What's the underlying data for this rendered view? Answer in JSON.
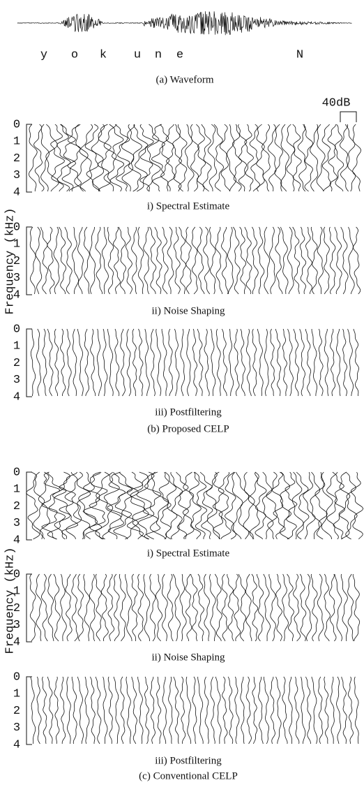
{
  "waveform": {
    "phonemes": [
      "y",
      "o",
      "k",
      "u",
      "n",
      "e",
      "N"
    ],
    "caption": "(a) Waveform"
  },
  "scale_label": "40dB",
  "figures": [
    {
      "axis_label": "Frequency (kHz)",
      "caption": "(b) Proposed CELP",
      "panels": [
        {
          "title": "i) Spectral Estimate",
          "ticks": [
            0,
            1,
            2,
            3,
            4
          ]
        },
        {
          "title": "ii) Noise Shaping",
          "ticks": [
            0,
            1,
            2,
            3,
            4
          ]
        },
        {
          "title": "iii) Postfiltering",
          "ticks": [
            0,
            1,
            2,
            3,
            4
          ]
        }
      ]
    },
    {
      "axis_label": "Frequency (kHz)",
      "caption": "(c) Conventional CELP",
      "panels": [
        {
          "title": "i) Spectral Estimate",
          "ticks": [
            0,
            1,
            2,
            3,
            4
          ]
        },
        {
          "title": "ii) Noise Shaping",
          "ticks": [
            0,
            1,
            2,
            3,
            4
          ]
        },
        {
          "title": "iii) Postfiltering",
          "ticks": [
            0,
            1,
            2,
            3,
            4
          ]
        }
      ]
    }
  ]
}
